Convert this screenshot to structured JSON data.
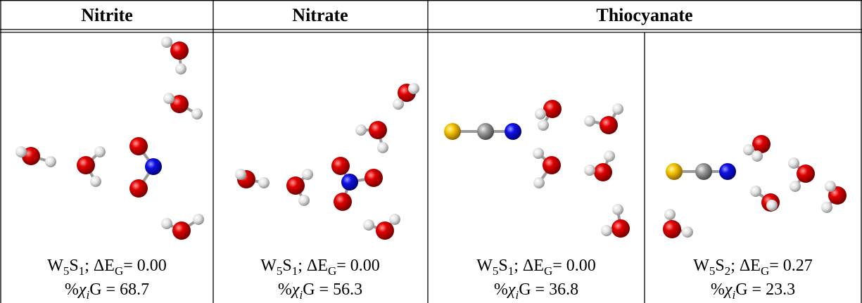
{
  "header": [
    "Nitrite",
    "Nitrate",
    "Thiocyanate"
  ],
  "cells": [
    {
      "line1": [
        {
          "text": "W"
        },
        {
          "text": "5",
          "sub": true
        },
        {
          "text": "S"
        },
        {
          "text": "1",
          "sub": true
        },
        {
          "text": "; ΔE"
        },
        {
          "text": "G",
          "sub": true
        },
        {
          "text": "= 0.00"
        }
      ],
      "line2": [
        {
          "text": "%"
        },
        {
          "text": "χ",
          "italic": true
        },
        {
          "text": "i",
          "sub": true,
          "italic": true
        },
        {
          "text": "G = 68.7"
        }
      ]
    },
    {
      "line1": [
        {
          "text": "W"
        },
        {
          "text": "5",
          "sub": true
        },
        {
          "text": "S"
        },
        {
          "text": "1",
          "sub": true
        },
        {
          "text": "; ΔE"
        },
        {
          "text": "G",
          "sub": true
        },
        {
          "text": "= 0.00"
        }
      ],
      "line2": [
        {
          "text": "%"
        },
        {
          "text": "χ",
          "italic": true
        },
        {
          "text": "i",
          "sub": true,
          "italic": true
        },
        {
          "text": "G = 56.3"
        }
      ]
    },
    {
      "line1": [
        {
          "text": "W"
        },
        {
          "text": "5",
          "sub": true
        },
        {
          "text": "S"
        },
        {
          "text": "1",
          "sub": true
        },
        {
          "text": "; ΔE"
        },
        {
          "text": "G",
          "sub": true
        },
        {
          "text": "= 0.00"
        }
      ],
      "line2": [
        {
          "text": "%"
        },
        {
          "text": "χ",
          "italic": true
        },
        {
          "text": "i",
          "sub": true,
          "italic": true
        },
        {
          "text": "G = 36.8"
        }
      ]
    },
    {
      "line1": [
        {
          "text": "W"
        },
        {
          "text": "5",
          "sub": true
        },
        {
          "text": "S"
        },
        {
          "text": "2",
          "sub": true
        },
        {
          "text": "; ΔE"
        },
        {
          "text": "G",
          "sub": true
        },
        {
          "text": "= 0.27"
        }
      ],
      "line2": [
        {
          "text": "%"
        },
        {
          "text": "χ",
          "italic": true
        },
        {
          "text": "i",
          "sub": true,
          "italic": true
        },
        {
          "text": "G = 23.3"
        }
      ]
    }
  ]
}
